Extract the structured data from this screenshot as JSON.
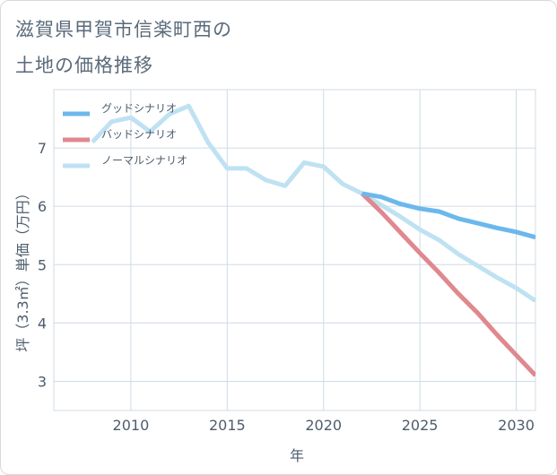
{
  "header": {
    "title_line1": "滋賀県甲賀市信楽町西の",
    "title_line2": "土地の価格推移"
  },
  "chart_data": {
    "type": "line",
    "xlabel": "年",
    "ylabel": "坪（3.3㎡）単価（万円）",
    "xlim": [
      2006,
      2031
    ],
    "ylim": [
      2.5,
      8.0
    ],
    "xticks": [
      2010,
      2015,
      2020,
      2025,
      2030
    ],
    "yticks": [
      3,
      4,
      5,
      6,
      7
    ],
    "grid": true,
    "legend_position": "top-left",
    "series": [
      {
        "name": "グッドシナリオ",
        "color": "#6cb8ec",
        "x": [
          2022,
          2023,
          2024,
          2025,
          2026,
          2027,
          2028,
          2029,
          2030,
          2031
        ],
        "y": [
          6.22,
          6.16,
          6.04,
          5.96,
          5.91,
          5.79,
          5.71,
          5.63,
          5.56,
          5.47
        ]
      },
      {
        "name": "バッドシナリオ",
        "color": "#e0888f",
        "x": [
          2022,
          2023,
          2024,
          2025,
          2026,
          2027,
          2028,
          2029,
          2030,
          2031
        ],
        "y": [
          6.22,
          5.9,
          5.55,
          5.2,
          4.86,
          4.5,
          4.17,
          3.8,
          3.45,
          3.1
        ]
      },
      {
        "name": "ノーマルシナリオ",
        "color": "#bfe2f2",
        "x": [
          2008,
          2009,
          2010,
          2011,
          2012,
          2013,
          2014,
          2015,
          2016,
          2017,
          2018,
          2019,
          2020,
          2021,
          2022,
          2023,
          2024,
          2025,
          2026,
          2027,
          2028,
          2029,
          2030,
          2031
        ],
        "y": [
          7.1,
          7.45,
          7.52,
          7.28,
          7.58,
          7.72,
          7.1,
          6.65,
          6.65,
          6.45,
          6.35,
          6.75,
          6.68,
          6.38,
          6.22,
          6.02,
          5.82,
          5.6,
          5.42,
          5.18,
          4.98,
          4.78,
          4.6,
          4.38
        ]
      }
    ]
  }
}
